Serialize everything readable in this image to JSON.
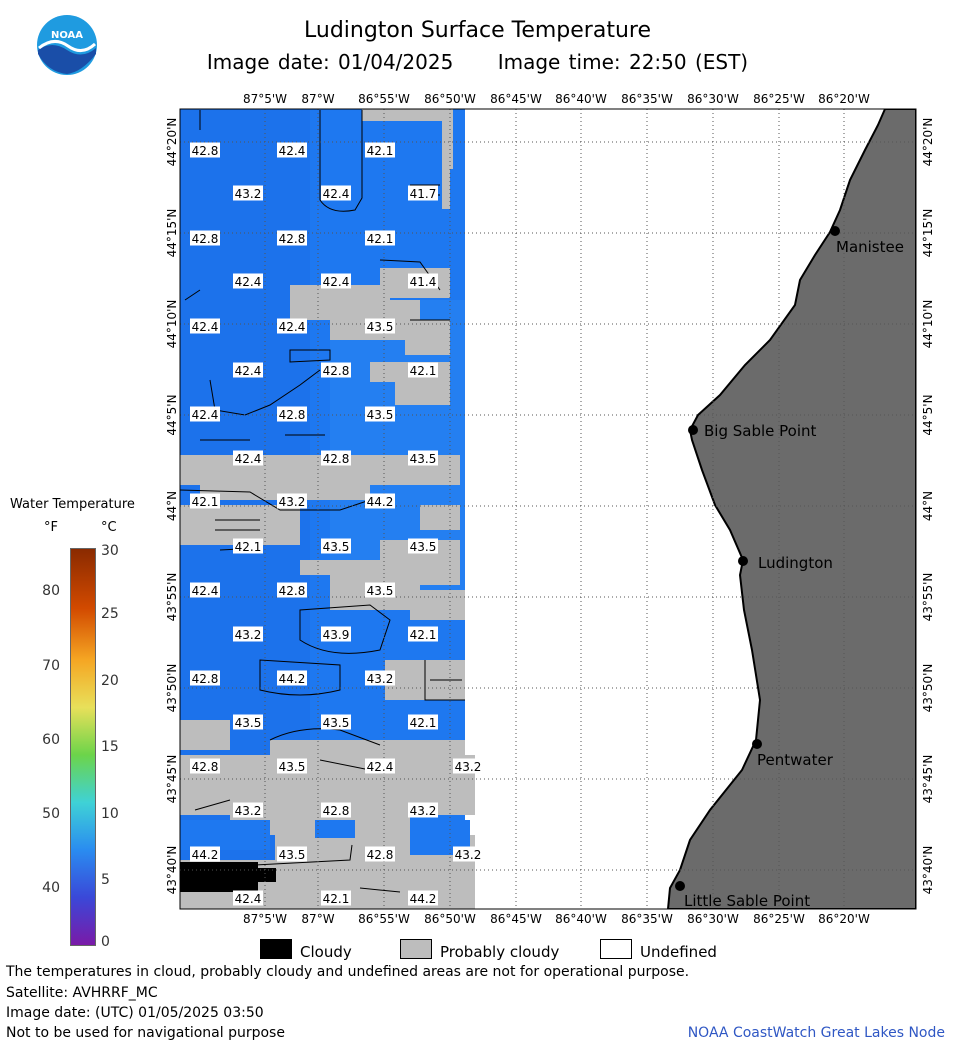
{
  "header": {
    "title": "Ludington Surface Temperature",
    "image_date": "Image date: 01/04/2025",
    "image_time": "Image time: 22:50 (EST)"
  },
  "logo": {
    "text": "NOAA"
  },
  "map": {
    "lon_labels": [
      "87°5'W",
      "87°W",
      "86°55'W",
      "86°50'W",
      "86°45'W",
      "86°40'W",
      "86°35'W",
      "86°30'W",
      "86°25'W",
      "86°20'W"
    ],
    "lat_labels": [
      "44°20'N",
      "44°15'N",
      "44°10'N",
      "44°5'N",
      "44°N",
      "43°55'N",
      "43°50'N",
      "43°45'N",
      "43°40'N"
    ],
    "places": [
      "Manistee",
      "Big Sable Point",
      "Ludington",
      "Pentwater",
      "Little Sable Point"
    ],
    "temperature_labels_f": [
      "42.8",
      "42.4",
      "42.1",
      "43.2",
      "42.4",
      "41.7",
      "42.8",
      "42.8",
      "42.1",
      "42.4",
      "42.4",
      "41.4",
      "42.4",
      "42.4",
      "43.5",
      "42.4",
      "42.8",
      "42.1",
      "42.4",
      "42.8",
      "43.5",
      "42.4",
      "42.8",
      "43.5",
      "42.1",
      "43.2",
      "44.2",
      "42.1",
      "43.5",
      "43.5",
      "42.4",
      "42.8",
      "43.5",
      "43.2",
      "43.9",
      "42.1",
      "42.8",
      "44.2",
      "43.2",
      "43.5",
      "43.5",
      "42.1",
      "42.8",
      "43.5",
      "42.4",
      "43.2",
      "43.2",
      "42.8",
      "43.2",
      "44.2",
      "43.5",
      "42.8",
      "43.2",
      "42.4",
      "42.1",
      "44.2"
    ],
    "colors": {
      "water": "#1e78f0",
      "land": "#6b6b6b",
      "cloud": "#000000",
      "probably_cloudy": "#bdbdbd"
    }
  },
  "legend": {
    "title": "Water Temperature",
    "unit_f": "°F",
    "unit_c": "°C",
    "f_ticks": [
      "80",
      "70",
      "60",
      "50",
      "40"
    ],
    "c_ticks": [
      "30",
      "25",
      "20",
      "15",
      "10",
      "5",
      "0"
    ]
  },
  "key": {
    "cloudy": "Cloudy",
    "probably_cloudy": "Probably cloudy",
    "undefined": "Undefined"
  },
  "notes": {
    "disclaimer": "The temperatures in cloud, probably cloudy and undefined areas are not for operational purpose.",
    "satellite": "Satellite: AVHRRF_MC",
    "utc_date": "Image date: (UTC) 01/05/2025  03:50",
    "navigation": "Not to be used for navigational purpose"
  },
  "credit": "NOAA CoastWatch Great Lakes Node"
}
